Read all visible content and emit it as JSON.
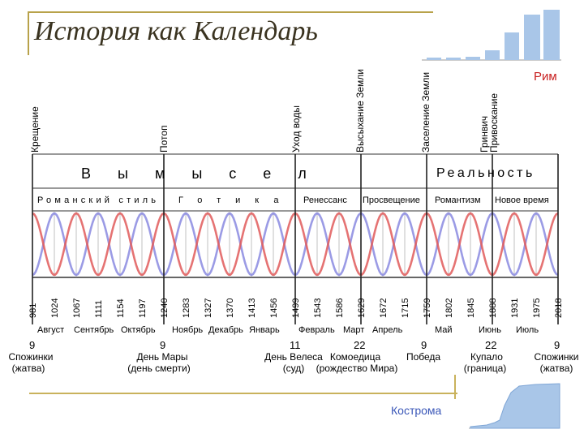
{
  "title": "История как Календарь",
  "rim_label": "Рим",
  "kostroma_label": "Кострома",
  "events": [
    {
      "label": "Крещение",
      "year": 981
    },
    {
      "label": "Потоп",
      "year": 1240
    },
    {
      "label": "Уход воды",
      "year": 1499
    },
    {
      "label": "Высыхание Земли",
      "year": 1629
    },
    {
      "label": "Заселение Земли",
      "year": 1759
    },
    {
      "label": "Гринвич",
      "year": 1888
    },
    {
      "label": "Привоскание",
      "year": 1888
    }
  ],
  "eras_main": [
    {
      "label": "В ы м ы с е л"
    },
    {
      "label": "Реальность"
    }
  ],
  "styles": [
    {
      "label": "Романский стиль"
    },
    {
      "label": "Готика"
    },
    {
      "label": "Ренессанс"
    },
    {
      "label": "Просвещение"
    },
    {
      "label": "Романтизм"
    },
    {
      "label": "Новое время"
    }
  ],
  "years": [
    "981",
    "1024",
    "1067",
    "1111",
    "1154",
    "1197",
    "1240",
    "1283",
    "1327",
    "1370",
    "1413",
    "1456",
    "1499",
    "1543",
    "1586",
    "1629",
    "1672",
    "1715",
    "1759",
    "1802",
    "1845",
    "1888",
    "1931",
    "1975",
    "2018"
  ],
  "months": [
    "Август",
    "Сентябрь",
    "Октябрь",
    "Ноябрь",
    "Декабрь",
    "Январь",
    "Февраль",
    "Март",
    "Апрель",
    "Май",
    "Июнь",
    "Июль"
  ],
  "day_numbers": [
    "9",
    "9",
    "11",
    "22",
    "9",
    "22",
    "9"
  ],
  "holidays": [
    {
      "name": "Спожинки",
      "note": "(жатва)"
    },
    {
      "name": "День Мары",
      "note": "(день смерти)"
    },
    {
      "name": "День Велеса",
      "note": "(суд)"
    },
    {
      "name": "Комоедица",
      "note": "(рождество Мира)"
    },
    {
      "name": "Победа",
      "note": ""
    },
    {
      "name": "Купало",
      "note": "(граница)"
    },
    {
      "name": "Спожинки",
      "note": "(жатва)"
    }
  ],
  "colors": {
    "red_wave": "#e05a5a",
    "blue_wave": "#8a8ae0",
    "rim": "#c82020",
    "kostroma": "#3a57b8",
    "chart_bar": "#a9c6e8"
  }
}
